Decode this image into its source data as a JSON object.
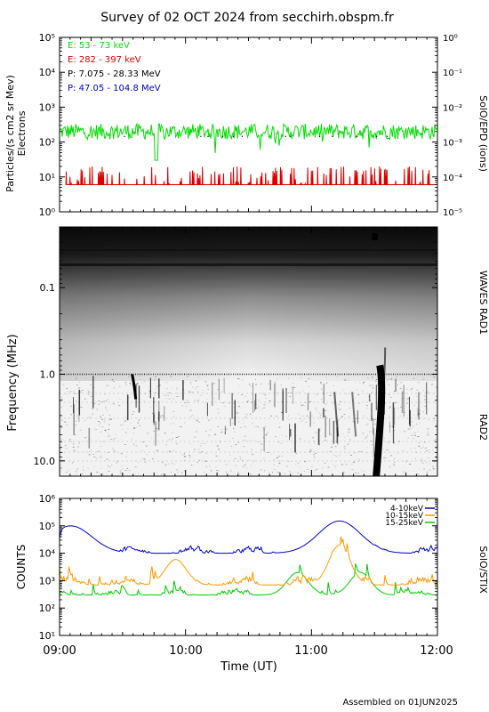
{
  "title": "Survey of 02 OCT 2024 from secchirh.obspm.fr",
  "footer": "Assembled on 01JUN2025",
  "chart_data": [
    {
      "id": "particles",
      "type": "line",
      "ylabel_lines": [
        "Particles/(s cm2 sr Mev)",
        "Electrons"
      ],
      "right_label": "SolO/EPD (ions)",
      "yscale": "log",
      "ylim": [
        1,
        100000
      ],
      "y_ticks": [
        1,
        10,
        100,
        1000,
        10000,
        100000
      ],
      "y_tick_labels": [
        "10⁰",
        "10¹",
        "10²",
        "10³",
        "10⁴",
        "10⁵"
      ],
      "y2_scale": "log",
      "y2lim": [
        1e-05,
        1
      ],
      "y2_tick_labels": [
        "10⁻⁵",
        "10⁻⁴",
        "10⁻³",
        "10⁻²",
        "10⁻¹",
        "10⁰"
      ],
      "legend_position": "top-left",
      "series": [
        {
          "name": "E: 53 - 73 keV",
          "color": "#00dd00",
          "typical": 200,
          "range": [
            30,
            400
          ]
        },
        {
          "name": "E: 282 - 397 keV",
          "color": "#dd0000",
          "typical": 6,
          "range": [
            5,
            20
          ]
        },
        {
          "name": "P: 7.075 - 28.33 MeV",
          "color": "#000000"
        },
        {
          "name": "P: 47.05 - 104.8 MeV",
          "color": "#0000cc"
        }
      ]
    },
    {
      "id": "radio",
      "type": "heatmap",
      "ylabel": "Frequency (MHz)",
      "yscale": "log",
      "y_ticks": [
        0.1,
        1.0,
        10.0
      ],
      "y_tick_labels": [
        "0.1",
        "1.0",
        "10.0"
      ],
      "ylim": [
        0.02,
        15
      ],
      "right_label_top": "WAVES RAD1",
      "right_label_bottom": "RAD2",
      "split_frequency": 1.0,
      "burst_times": [
        "09:35",
        "11:30"
      ]
    },
    {
      "id": "stix",
      "type": "line",
      "ylabel": "COUNTS",
      "right_label": "SolO/STIX",
      "yscale": "log",
      "ylim": [
        10,
        1000000
      ],
      "y_ticks": [
        10,
        100,
        1000,
        10000,
        100000,
        1000000
      ],
      "y_tick_labels": [
        "10¹",
        "10²",
        "10³",
        "10⁴",
        "10⁵",
        "10⁶"
      ],
      "xlabel": "Time (UT)",
      "x_tick_labels": [
        "09:00",
        "10:00",
        "11:00",
        "12:00"
      ],
      "xlim": [
        "09:00",
        "12:00"
      ],
      "legend_position": "top-right",
      "series": [
        {
          "name": "4-10keV",
          "color": "#0000cc",
          "typical": 10000,
          "peaks": [
            {
              "time": "09:05",
              "value": 100000
            },
            {
              "time": "11:13",
              "value": 150000
            }
          ]
        },
        {
          "name": "10-15keV",
          "color": "#ff9900",
          "typical": 700,
          "peaks": [
            {
              "time": "09:55",
              "value": 6000
            },
            {
              "time": "11:13",
              "value": 20000
            }
          ]
        },
        {
          "name": "15-25keV",
          "color": "#00cc00",
          "typical": 300,
          "peaks": [
            {
              "time": "10:53",
              "value": 2000
            },
            {
              "time": "11:23",
              "value": 2000
            }
          ]
        }
      ]
    }
  ]
}
